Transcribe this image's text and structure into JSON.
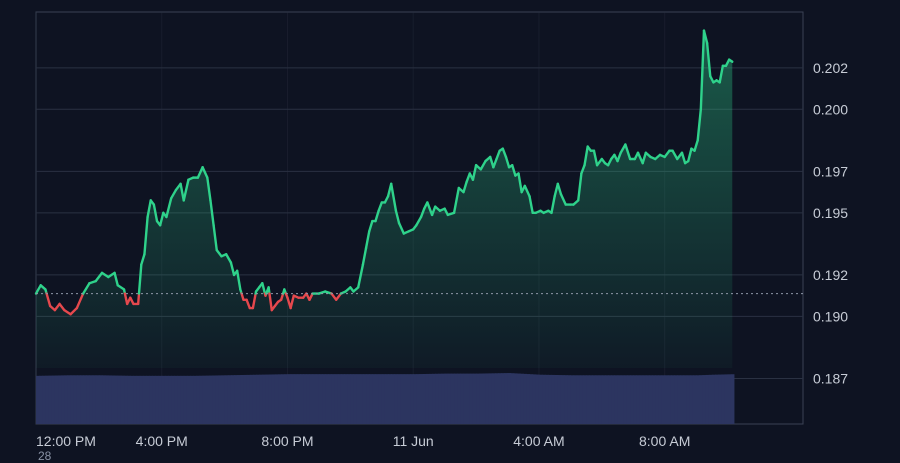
{
  "chart_data": {
    "type": "line",
    "title": "",
    "xlabel": "",
    "ylabel": "",
    "baseline": 0.1911,
    "ylim": [
      0.1848,
      0.2047
    ],
    "y_ticks": [
      "0.187",
      "0.190",
      "0.192",
      "0.195",
      "0.197",
      "0.200",
      "0.202"
    ],
    "x_ticks": [
      "12:00 PM",
      "4:00 PM",
      "8:00 PM",
      "11 Jun",
      "4:00 AM",
      "8:00 AM"
    ],
    "x_tick_hours": [
      0,
      4,
      8,
      12,
      16,
      20
    ],
    "x_range_hours": [
      0,
      24.4
    ],
    "clipped_footer_text": "28",
    "colors": {
      "background": "#0e1322",
      "up": "#2fd28b",
      "down": "#e5484d",
      "volume": "#2c3560",
      "baseline": "#8f97a8"
    },
    "series": [
      {
        "values": [
          [
            0.0,
            0.1911
          ],
          [
            0.15,
            0.1915
          ],
          [
            0.3,
            0.1913
          ],
          [
            0.45,
            0.1905
          ],
          [
            0.6,
            0.1903
          ],
          [
            0.75,
            0.1906
          ],
          [
            0.9,
            0.1903
          ],
          [
            1.1,
            0.1901
          ],
          [
            1.3,
            0.1904
          ],
          [
            1.5,
            0.1911
          ],
          [
            1.7,
            0.1916
          ],
          [
            1.9,
            0.1917
          ],
          [
            2.1,
            0.1921
          ],
          [
            2.3,
            0.1919
          ],
          [
            2.5,
            0.1921
          ],
          [
            2.6,
            0.1915
          ],
          [
            2.8,
            0.1913
          ],
          [
            2.9,
            0.1906
          ],
          [
            3.0,
            0.1909
          ],
          [
            3.1,
            0.1906
          ],
          [
            3.25,
            0.1906
          ],
          [
            3.35,
            0.1925
          ],
          [
            3.45,
            0.193
          ],
          [
            3.55,
            0.1948
          ],
          [
            3.65,
            0.1956
          ],
          [
            3.75,
            0.1954
          ],
          [
            3.85,
            0.1946
          ],
          [
            3.95,
            0.1944
          ],
          [
            4.05,
            0.195
          ],
          [
            4.15,
            0.1948
          ],
          [
            4.3,
            0.1957
          ],
          [
            4.45,
            0.1961
          ],
          [
            4.6,
            0.1964
          ],
          [
            4.7,
            0.1956
          ],
          [
            4.85,
            0.1966
          ],
          [
            5.0,
            0.1967
          ],
          [
            5.15,
            0.1967
          ],
          [
            5.3,
            0.1972
          ],
          [
            5.45,
            0.1967
          ],
          [
            5.55,
            0.1956
          ],
          [
            5.65,
            0.1944
          ],
          [
            5.75,
            0.1932
          ],
          [
            5.9,
            0.1929
          ],
          [
            6.05,
            0.193
          ],
          [
            6.2,
            0.1926
          ],
          [
            6.3,
            0.192
          ],
          [
            6.4,
            0.1922
          ],
          [
            6.5,
            0.1913
          ],
          [
            6.6,
            0.1908
          ],
          [
            6.7,
            0.1908
          ],
          [
            6.8,
            0.1904
          ],
          [
            6.9,
            0.1904
          ],
          [
            7.0,
            0.1912
          ],
          [
            7.1,
            0.1914
          ],
          [
            7.2,
            0.1916
          ],
          [
            7.3,
            0.191
          ],
          [
            7.4,
            0.1914
          ],
          [
            7.5,
            0.1903
          ],
          [
            7.6,
            0.1905
          ],
          [
            7.7,
            0.1907
          ],
          [
            7.8,
            0.1908
          ],
          [
            7.9,
            0.1913
          ],
          [
            8.0,
            0.1909
          ],
          [
            8.1,
            0.1904
          ],
          [
            8.2,
            0.191
          ],
          [
            8.35,
            0.1909
          ],
          [
            8.5,
            0.1909
          ],
          [
            8.6,
            0.1911
          ],
          [
            8.7,
            0.1908
          ],
          [
            8.8,
            0.1911
          ],
          [
            9.0,
            0.1911
          ],
          [
            9.2,
            0.1912
          ],
          [
            9.4,
            0.1911
          ],
          [
            9.55,
            0.1908
          ],
          [
            9.7,
            0.1911
          ],
          [
            9.85,
            0.1912
          ],
          [
            10.0,
            0.1914
          ],
          [
            10.1,
            0.1912
          ],
          [
            10.25,
            0.1914
          ],
          [
            10.4,
            0.1925
          ],
          [
            10.5,
            0.1933
          ],
          [
            10.6,
            0.1941
          ],
          [
            10.7,
            0.1946
          ],
          [
            10.8,
            0.1946
          ],
          [
            10.9,
            0.1951
          ],
          [
            11.0,
            0.1955
          ],
          [
            11.1,
            0.1955
          ],
          [
            11.2,
            0.1958
          ],
          [
            11.3,
            0.1964
          ],
          [
            11.45,
            0.1951
          ],
          [
            11.55,
            0.1945
          ],
          [
            11.7,
            0.194
          ],
          [
            11.85,
            0.1941
          ],
          [
            12.0,
            0.1942
          ],
          [
            12.1,
            0.1944
          ],
          [
            12.25,
            0.1948
          ],
          [
            12.35,
            0.1952
          ],
          [
            12.45,
            0.1955
          ],
          [
            12.6,
            0.1949
          ],
          [
            12.7,
            0.1953
          ],
          [
            12.85,
            0.1951
          ],
          [
            13.0,
            0.1952
          ],
          [
            13.1,
            0.1949
          ],
          [
            13.3,
            0.195
          ],
          [
            13.45,
            0.1962
          ],
          [
            13.6,
            0.196
          ],
          [
            13.7,
            0.1965
          ],
          [
            13.8,
            0.1969
          ],
          [
            13.9,
            0.1966
          ],
          [
            14.0,
            0.1973
          ],
          [
            14.15,
            0.1971
          ],
          [
            14.3,
            0.1975
          ],
          [
            14.45,
            0.1977
          ],
          [
            14.55,
            0.1972
          ],
          [
            14.65,
            0.1976
          ],
          [
            14.75,
            0.198
          ],
          [
            14.85,
            0.1981
          ],
          [
            14.95,
            0.1977
          ],
          [
            15.05,
            0.1972
          ],
          [
            15.15,
            0.1973
          ],
          [
            15.25,
            0.1968
          ],
          [
            15.35,
            0.1969
          ],
          [
            15.45,
            0.196
          ],
          [
            15.55,
            0.1963
          ],
          [
            15.7,
            0.1958
          ],
          [
            15.8,
            0.195
          ],
          [
            15.9,
            0.195
          ],
          [
            16.05,
            0.1951
          ],
          [
            16.15,
            0.195
          ],
          [
            16.3,
            0.1951
          ],
          [
            16.4,
            0.195
          ],
          [
            16.5,
            0.1958
          ],
          [
            16.6,
            0.1964
          ],
          [
            16.7,
            0.1959
          ],
          [
            16.85,
            0.1954
          ],
          [
            17.0,
            0.1954
          ],
          [
            17.1,
            0.1954
          ],
          [
            17.25,
            0.1956
          ],
          [
            17.35,
            0.1969
          ],
          [
            17.45,
            0.1973
          ],
          [
            17.55,
            0.1982
          ],
          [
            17.65,
            0.198
          ],
          [
            17.75,
            0.198
          ],
          [
            17.85,
            0.1973
          ],
          [
            18.0,
            0.1976
          ],
          [
            18.1,
            0.1974
          ],
          [
            18.2,
            0.1973
          ],
          [
            18.3,
            0.1976
          ],
          [
            18.4,
            0.1978
          ],
          [
            18.5,
            0.1975
          ],
          [
            18.6,
            0.1979
          ],
          [
            18.75,
            0.1983
          ],
          [
            18.9,
            0.1976
          ],
          [
            19.05,
            0.1976
          ],
          [
            19.15,
            0.1979
          ],
          [
            19.3,
            0.1974
          ],
          [
            19.4,
            0.1979
          ],
          [
            19.55,
            0.1977
          ],
          [
            19.7,
            0.1976
          ],
          [
            19.85,
            0.1978
          ],
          [
            20.0,
            0.1977
          ],
          [
            20.15,
            0.198
          ],
          [
            20.25,
            0.198
          ],
          [
            20.4,
            0.1976
          ],
          [
            20.55,
            0.1979
          ],
          [
            20.65,
            0.1974
          ],
          [
            20.75,
            0.1975
          ],
          [
            20.85,
            0.1981
          ],
          [
            20.95,
            0.198
          ],
          [
            21.05,
            0.1985
          ],
          [
            21.15,
            0.2
          ],
          [
            21.25,
            0.2038
          ],
          [
            21.35,
            0.2032
          ],
          [
            21.45,
            0.2016
          ],
          [
            21.55,
            0.2013
          ],
          [
            21.65,
            0.2014
          ],
          [
            21.75,
            0.2013
          ],
          [
            21.85,
            0.2021
          ],
          [
            21.95,
            0.2021
          ],
          [
            22.05,
            0.2024
          ],
          [
            22.15,
            0.2023
          ]
        ]
      }
    ],
    "volume": [
      [
        0.0,
        0.86
      ],
      [
        1.0,
        0.87
      ],
      [
        2.0,
        0.87
      ],
      [
        3.0,
        0.86
      ],
      [
        4.0,
        0.86
      ],
      [
        5.0,
        0.86
      ],
      [
        6.0,
        0.87
      ],
      [
        7.0,
        0.88
      ],
      [
        8.0,
        0.89
      ],
      [
        9.0,
        0.89
      ],
      [
        10.0,
        0.89
      ],
      [
        11.0,
        0.89
      ],
      [
        12.0,
        0.89
      ],
      [
        13.0,
        0.9
      ],
      [
        14.0,
        0.9
      ],
      [
        15.0,
        0.91
      ],
      [
        16.0,
        0.88
      ],
      [
        17.0,
        0.87
      ],
      [
        18.0,
        0.87
      ],
      [
        19.0,
        0.87
      ],
      [
        20.0,
        0.87
      ],
      [
        21.0,
        0.87
      ],
      [
        21.5,
        0.88
      ],
      [
        22.2,
        0.89
      ]
    ]
  }
}
